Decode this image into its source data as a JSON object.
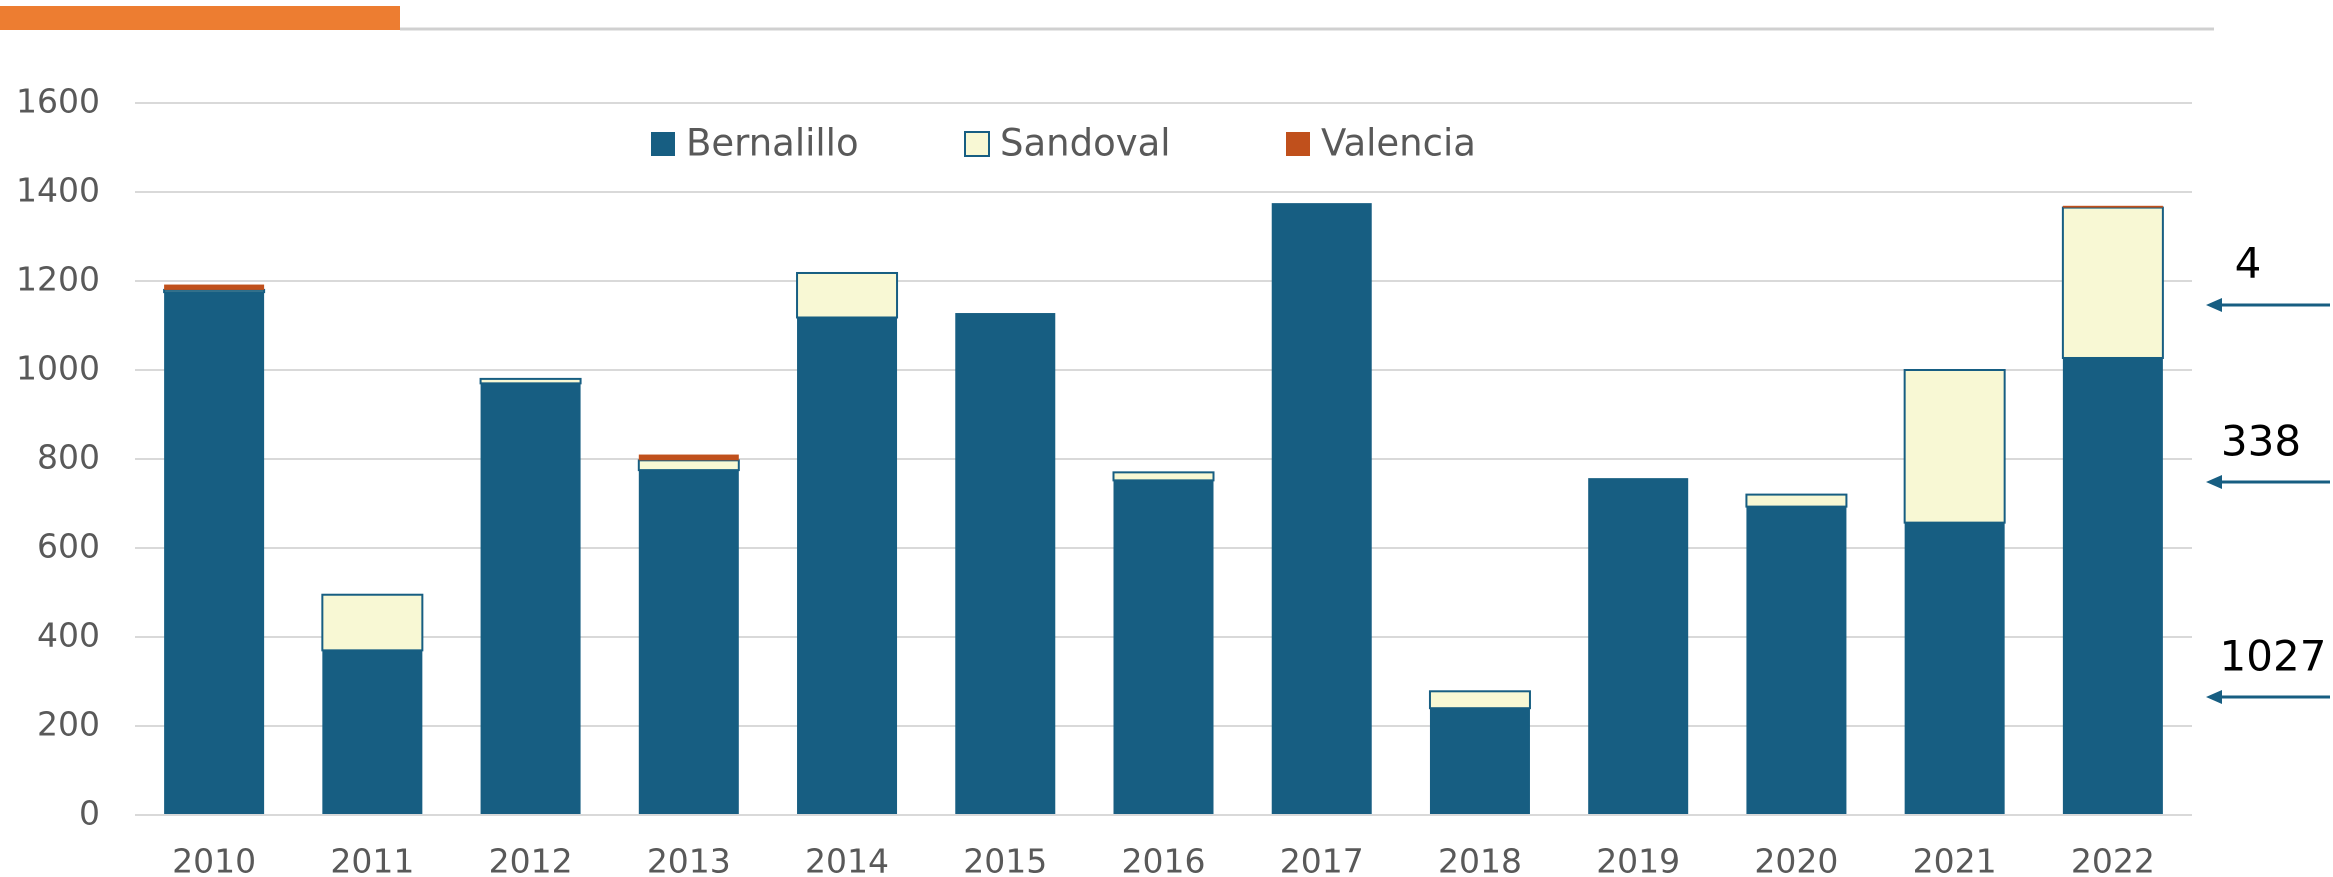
{
  "chart_data": {
    "type": "stacked_bar",
    "categories": [
      "2010",
      "2011",
      "2012",
      "2013",
      "2014",
      "2015",
      "2016",
      "2017",
      "2018",
      "2019",
      "2020",
      "2021",
      "2022"
    ],
    "series": [
      {
        "name": "Bernalillo",
        "color": "#175e82",
        "values": [
          1175,
          370,
          970,
          775,
          1118,
          1128,
          752,
          1375,
          240,
          757,
          693,
          657,
          1027
        ]
      },
      {
        "name": "Sandoval",
        "color": "#f8f8d4",
        "values": [
          5,
          125,
          10,
          22,
          100,
          0,
          18,
          0,
          38,
          0,
          27,
          343,
          338
        ]
      },
      {
        "name": "Valencia",
        "color": "#c0501c",
        "values": [
          12,
          0,
          0,
          13,
          0,
          0,
          0,
          0,
          0,
          0,
          0,
          0,
          4
        ]
      }
    ],
    "ylim": [
      0,
      1600
    ],
    "yticks": [
      0,
      200,
      400,
      600,
      800,
      1000,
      1200,
      1400,
      1600
    ],
    "grid": true,
    "legend": "top",
    "annotations": [
      "4",
      "338",
      "1027"
    ]
  }
}
